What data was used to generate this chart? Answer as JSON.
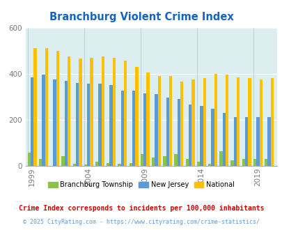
{
  "title": "Branchburg Violent Crime Index",
  "years": [
    1999,
    2000,
    2001,
    2002,
    2003,
    2004,
    2005,
    2006,
    2007,
    2008,
    2009,
    2010,
    2011,
    2012,
    2013,
    2014,
    2015,
    2016,
    2017,
    2018,
    2019,
    2020
  ],
  "branchburg": [
    55,
    30,
    0,
    40,
    8,
    5,
    18,
    12,
    8,
    12,
    50,
    35,
    40,
    50,
    28,
    18,
    8,
    62,
    22,
    30,
    28,
    28
  ],
  "new_jersey": [
    385,
    395,
    375,
    370,
    360,
    355,
    355,
    350,
    325,
    325,
    315,
    310,
    295,
    290,
    265,
    260,
    248,
    230,
    210,
    210,
    210,
    210
  ],
  "national": [
    510,
    510,
    500,
    475,
    465,
    470,
    475,
    468,
    455,
    430,
    405,
    390,
    390,
    365,
    375,
    380,
    400,
    395,
    385,
    380,
    375,
    380
  ],
  "bar_color_branchburg": "#8bc34a",
  "bar_color_nj": "#5b9bd5",
  "bar_color_national": "#ffc000",
  "bg_color": "#ddeef0",
  "ylim": [
    0,
    600
  ],
  "yticks": [
    0,
    200,
    400,
    600
  ],
  "tick_years": [
    1999,
    2004,
    2009,
    2014,
    2019
  ],
  "legend_labels": [
    "Branchburg Township",
    "New Jersey",
    "National"
  ],
  "footnote1": "Crime Index corresponds to incidents per 100,000 inhabitants",
  "footnote2": "© 2025 CityRating.com - https://www.cityrating.com/crime-statistics/",
  "title_color": "#1565c0",
  "footnote1_color": "#cc0000",
  "footnote2_color": "#5b9bd5"
}
